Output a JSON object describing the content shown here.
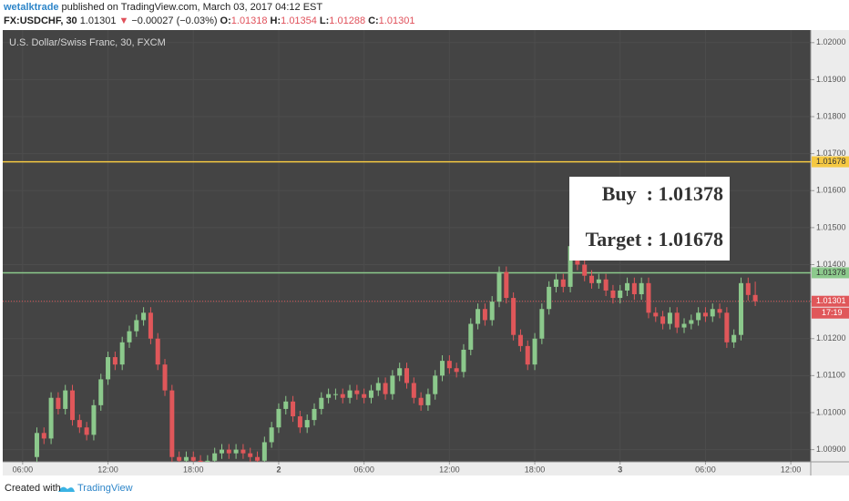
{
  "header": {
    "author": "wetalktrade",
    "published": "published on TradingView.com, March 03, 2017 04:12 EST",
    "symbol": "FX:USDCHF, 30",
    "last": "1.01301",
    "change_arrow": "▼",
    "change": "−0.00027 (−0.03%)",
    "ohlc": [
      {
        "label": "O:",
        "value": "1.01318"
      },
      {
        "label": "H:",
        "value": "1.01354"
      },
      {
        "label": "L:",
        "value": "1.01288"
      },
      {
        "label": "C:",
        "value": "1.01301"
      }
    ]
  },
  "footer": {
    "created": "Created with",
    "brand": "TradingView"
  },
  "chart_data": {
    "type": "candlestick",
    "title": "U.S. Dollar/Swiss Franc, 30, FXCM",
    "annotations": [
      "Buy  : 1.01378",
      "Target : 1.01678"
    ],
    "up_color": "#8cc98c",
    "down_color": "#e0575a",
    "x": [
      7,
      7.5,
      8,
      8.5,
      9,
      9.5,
      10,
      10.5,
      11,
      11.5,
      12,
      12.5,
      13,
      13.5,
      14,
      14.5,
      15,
      15.5,
      16,
      16.5,
      17,
      17.5,
      18,
      18.5,
      19,
      19.5,
      20,
      20.5,
      21,
      21.5,
      22,
      22.5,
      23,
      23.5,
      24,
      24.5,
      25,
      25.5,
      26,
      26.5,
      27,
      27.5,
      28,
      28.5,
      29,
      29.5,
      30,
      30.5,
      31,
      31.5,
      32,
      32.5,
      33,
      33.5,
      34,
      34.5,
      35,
      35.5,
      36,
      36.5,
      37,
      37.5,
      38,
      38.5,
      39,
      39.5,
      40,
      40.5,
      41,
      41.5,
      42,
      42.5,
      43,
      43.5,
      44,
      44.5,
      45,
      45.5,
      46,
      46.5,
      47,
      47.5,
      48,
      48.5,
      49,
      49.5,
      50,
      50.5,
      51,
      51.5,
      52,
      52.5,
      53,
      53.5,
      54,
      54.5,
      55,
      55.5,
      56,
      56.5,
      57,
      57.5
    ],
    "open": [
      1.0088,
      1.00945,
      1.0093,
      1.0104,
      1.0101,
      1.0106,
      1.0098,
      1.0096,
      1.0094,
      1.0102,
      1.0109,
      1.0115,
      1.0113,
      1.0119,
      1.0122,
      1.0125,
      1.0127,
      1.012,
      1.0113,
      1.0106,
      1.0088,
      1.0087,
      1.0088,
      1.0087,
      1.0086,
      1.0087,
      1.0089,
      1.009,
      1.0089,
      1.009,
      1.0089,
      1.0088,
      1.0087,
      1.0092,
      1.0096,
      1.0101,
      1.0103,
      1.0099,
      1.0096,
      1.0098,
      1.0101,
      1.0104,
      1.0105,
      1.0105,
      1.0104,
      1.0106,
      1.0105,
      1.0104,
      1.0106,
      1.0108,
      1.0105,
      1.011,
      1.0112,
      1.0108,
      1.0104,
      1.0102,
      1.0105,
      1.011,
      1.0114,
      1.0112,
      1.0111,
      1.0117,
      1.0124,
      1.0128,
      1.0125,
      1.013,
      1.0138,
      1.0131,
      1.0121,
      1.0118,
      1.0113,
      1.012,
      1.0128,
      1.0134,
      1.0136,
      1.0134,
      1.0145,
      1.014,
      1.0137,
      1.0135,
      1.0136,
      1.0133,
      1.0131,
      1.0133,
      1.0135,
      1.0132,
      1.0135,
      1.0127,
      1.0126,
      1.0124,
      1.0127,
      1.0123,
      1.0124,
      1.0125,
      1.0127,
      1.0126,
      1.0128,
      1.0127,
      1.0119,
      1.0121,
      1.0135,
      1.01318
    ],
    "high": [
      1.0096,
      1.0096,
      1.01055,
      1.01055,
      1.01075,
      1.01075,
      1.00995,
      1.00975,
      1.01035,
      1.01105,
      1.01165,
      1.01165,
      1.01205,
      1.01235,
      1.01265,
      1.01285,
      1.01285,
      1.01215,
      1.01145,
      1.01075,
      1.00895,
      1.00895,
      1.00895,
      1.00885,
      1.00885,
      1.00905,
      1.00915,
      1.00915,
      1.00915,
      1.00915,
      1.00905,
      1.00895,
      1.00935,
      1.00975,
      1.01025,
      1.01045,
      1.01045,
      1.01005,
      1.00995,
      1.01025,
      1.01055,
      1.01065,
      1.01065,
      1.01065,
      1.01075,
      1.01075,
      1.01065,
      1.01075,
      1.01095,
      1.01095,
      1.01115,
      1.01135,
      1.01135,
      1.01095,
      1.01055,
      1.01065,
      1.01115,
      1.01155,
      1.01155,
      1.01135,
      1.01185,
      1.01255,
      1.01295,
      1.01295,
      1.01315,
      1.01395,
      1.01395,
      1.01325,
      1.01225,
      1.01195,
      1.01215,
      1.01295,
      1.01355,
      1.01375,
      1.01375,
      1.01465,
      1.01465,
      1.01415,
      1.01385,
      1.01375,
      1.01375,
      1.01345,
      1.01345,
      1.01365,
      1.01365,
      1.01365,
      1.01365,
      1.01285,
      1.01275,
      1.01285,
      1.01285,
      1.01255,
      1.01265,
      1.01285,
      1.01285,
      1.01295,
      1.01295,
      1.01285,
      1.01225,
      1.01365,
      1.01365,
      1.01354
    ],
    "low": [
      1.00865,
      1.00915,
      1.00915,
      1.00995,
      1.00995,
      1.00965,
      1.00945,
      1.00925,
      1.00925,
      1.01005,
      1.01075,
      1.01115,
      1.01115,
      1.01175,
      1.01205,
      1.01235,
      1.01185,
      1.01115,
      1.01045,
      1.00865,
      1.00855,
      1.00855,
      1.00855,
      1.00845,
      1.00845,
      1.00855,
      1.00875,
      1.00875,
      1.00875,
      1.00875,
      1.00865,
      1.00855,
      1.00855,
      1.00905,
      1.00945,
      1.00995,
      1.00975,
      1.00945,
      1.00945,
      1.00965,
      1.00995,
      1.01025,
      1.01035,
      1.01025,
      1.01025,
      1.01035,
      1.01025,
      1.01025,
      1.01045,
      1.01035,
      1.01035,
      1.01085,
      1.01065,
      1.01025,
      1.01005,
      1.01005,
      1.01035,
      1.01085,
      1.01105,
      1.01095,
      1.01095,
      1.01155,
      1.01225,
      1.01235,
      1.01235,
      1.01285,
      1.01295,
      1.01195,
      1.01165,
      1.01115,
      1.01115,
      1.01185,
      1.01265,
      1.01325,
      1.01325,
      1.01325,
      1.01385,
      1.01355,
      1.01335,
      1.01335,
      1.01315,
      1.01295,
      1.01295,
      1.01315,
      1.01305,
      1.01305,
      1.01255,
      1.01245,
      1.01225,
      1.01225,
      1.01215,
      1.01215,
      1.01225,
      1.01235,
      1.01245,
      1.01245,
      1.01255,
      1.01175,
      1.01175,
      1.01195,
      1.01303,
      1.01288
    ],
    "close": [
      1.00945,
      1.0093,
      1.0104,
      1.0101,
      1.0106,
      1.0098,
      1.0096,
      1.0094,
      1.0102,
      1.0109,
      1.0115,
      1.0113,
      1.0119,
      1.0122,
      1.0125,
      1.0127,
      1.012,
      1.0113,
      1.0106,
      1.0088,
      1.0087,
      1.0088,
      1.0087,
      1.0086,
      1.0087,
      1.0089,
      1.009,
      1.0089,
      1.009,
      1.0089,
      1.0088,
      1.0087,
      1.0092,
      1.0096,
      1.0101,
      1.0103,
      1.0099,
      1.0096,
      1.0098,
      1.0101,
      1.0104,
      1.0105,
      1.0105,
      1.0104,
      1.0106,
      1.0105,
      1.0104,
      1.0106,
      1.0108,
      1.0105,
      1.011,
      1.0112,
      1.0108,
      1.0104,
      1.0102,
      1.0105,
      1.011,
      1.0114,
      1.0112,
      1.0111,
      1.0117,
      1.0124,
      1.0128,
      1.0125,
      1.013,
      1.0138,
      1.0131,
      1.0121,
      1.0118,
      1.0113,
      1.012,
      1.0128,
      1.0134,
      1.0136,
      1.0134,
      1.0145,
      1.014,
      1.0137,
      1.0135,
      1.0136,
      1.0133,
      1.0131,
      1.0133,
      1.0135,
      1.0132,
      1.0135,
      1.0127,
      1.0126,
      1.0124,
      1.0127,
      1.0123,
      1.0124,
      1.0125,
      1.0127,
      1.0126,
      1.0128,
      1.0127,
      1.0119,
      1.0121,
      1.0135,
      1.01318,
      1.01301
    ],
    "xlim": [
      4.6,
      61.4
    ],
    "xticks": [
      {
        "value": 6,
        "label": "06:00"
      },
      {
        "value": 12,
        "label": "12:00"
      },
      {
        "value": 18,
        "label": "18:00"
      },
      {
        "value": 24,
        "label": "2"
      },
      {
        "value": 30,
        "label": "06:00"
      },
      {
        "value": 36,
        "label": "12:00"
      },
      {
        "value": 42,
        "label": "18:00"
      },
      {
        "value": 48,
        "label": "3"
      },
      {
        "value": 54,
        "label": "06:00"
      },
      {
        "value": 60,
        "label": "12:00"
      }
    ],
    "ylim": [
      1.00867,
      1.02034
    ],
    "yticks": [
      {
        "value": 1.02,
        "label": "1.02000"
      },
      {
        "value": 1.019,
        "label": "1.01900"
      },
      {
        "value": 1.018,
        "label": "1.01800"
      },
      {
        "value": 1.017,
        "label": "1.01700"
      },
      {
        "value": 1.016,
        "label": "1.01600"
      },
      {
        "value": 1.015,
        "label": "1.01500"
      },
      {
        "value": 1.014,
        "label": "1.01400"
      },
      {
        "value": 1.013,
        "label": "1.01300"
      },
      {
        "value": 1.012,
        "label": "1.01200"
      },
      {
        "value": 1.011,
        "label": "1.01100"
      },
      {
        "value": 1.01,
        "label": "1.01000"
      },
      {
        "value": 1.009,
        "label": "1.00900"
      }
    ],
    "grid": true,
    "hlines": [
      {
        "value": 1.01678,
        "color": "#f5c842",
        "style": "solid"
      },
      {
        "value": 1.01378,
        "color": "#8cc98c",
        "style": "solid"
      },
      {
        "value": 1.01301,
        "color": "#e0575a",
        "style": "dotted",
        "countdown": "17:19"
      }
    ]
  }
}
